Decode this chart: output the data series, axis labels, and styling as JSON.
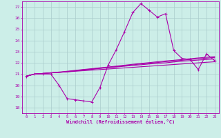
{
  "xlabel": "Windchill (Refroidissement éolien,°C)",
  "bg_color": "#cceee8",
  "grid_color": "#aacccc",
  "line_color": "#aa00aa",
  "xlim": [
    -0.5,
    23.5
  ],
  "ylim": [
    17.5,
    27.5
  ],
  "yticks": [
    18,
    19,
    20,
    21,
    22,
    23,
    24,
    25,
    26,
    27
  ],
  "xticks": [
    0,
    1,
    2,
    3,
    4,
    5,
    6,
    7,
    8,
    9,
    10,
    11,
    12,
    13,
    14,
    15,
    16,
    17,
    18,
    19,
    20,
    21,
    22,
    23
  ],
  "main_x": [
    0,
    1,
    2,
    3,
    4,
    5,
    6,
    7,
    8,
    9,
    10,
    11,
    12,
    13,
    14,
    15,
    16,
    17,
    18,
    19,
    20,
    21,
    22,
    23
  ],
  "main_y": [
    20.8,
    21.0,
    21.0,
    21.0,
    20.0,
    18.8,
    18.7,
    18.6,
    18.5,
    19.8,
    21.8,
    23.2,
    24.8,
    26.5,
    27.3,
    26.7,
    26.1,
    26.4,
    23.1,
    22.4,
    22.3,
    21.4,
    22.8,
    22.2
  ],
  "ref_lines": [
    [
      20.8,
      21.0,
      21.05,
      21.1,
      21.15,
      21.2,
      21.25,
      21.3,
      21.35,
      21.4,
      21.45,
      21.5,
      21.55,
      21.6,
      21.65,
      21.7,
      21.75,
      21.8,
      21.85,
      21.9,
      21.95,
      22.0,
      22.05,
      22.1
    ],
    [
      20.8,
      21.0,
      21.05,
      21.1,
      21.15,
      21.2,
      21.28,
      21.35,
      21.42,
      21.5,
      21.57,
      21.63,
      21.7,
      21.77,
      21.83,
      21.9,
      21.95,
      22.0,
      22.08,
      22.15,
      22.2,
      22.25,
      22.3,
      22.35
    ],
    [
      20.8,
      21.0,
      21.05,
      21.1,
      21.15,
      21.22,
      21.3,
      21.38,
      21.45,
      21.52,
      21.6,
      21.67,
      21.75,
      21.82,
      21.9,
      21.97,
      22.03,
      22.1,
      22.17,
      22.23,
      22.3,
      22.37,
      22.42,
      22.48
    ],
    [
      20.8,
      21.0,
      21.05,
      21.12,
      21.18,
      21.25,
      21.33,
      21.41,
      21.48,
      21.56,
      21.63,
      21.71,
      21.79,
      21.87,
      21.95,
      22.02,
      22.1,
      22.17,
      22.23,
      22.3,
      22.37,
      22.44,
      22.5,
      22.56
    ]
  ]
}
